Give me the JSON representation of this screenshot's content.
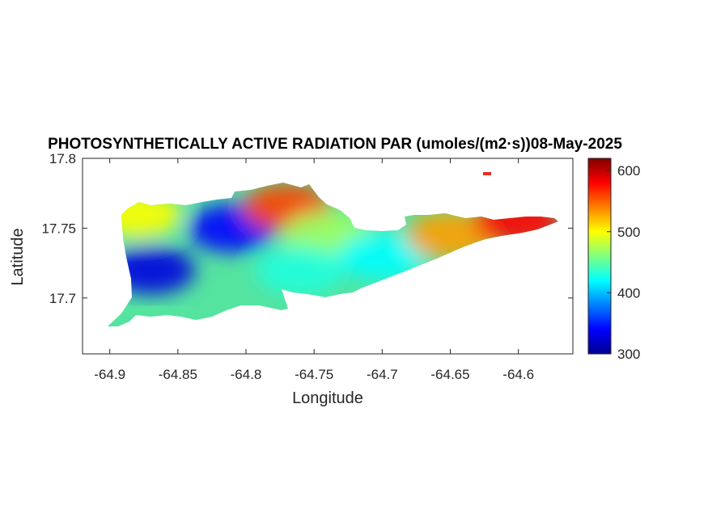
{
  "chart_data": {
    "type": "heatmap",
    "title": "PHOTOSYNTHETICALLY ACTIVE RADIATION PAR (umoles/(m2·s))08-May-2025",
    "xlabel": "Longitude",
    "ylabel": "Latitude",
    "xlim": [
      -64.92,
      -64.56
    ],
    "ylim": [
      17.66,
      17.8
    ],
    "xticks": [
      -64.9,
      -64.85,
      -64.8,
      -64.75,
      -64.7,
      -64.65,
      -64.6
    ],
    "xtick_labels": [
      "-64.9",
      "-64.85",
      "-64.8",
      "-64.75",
      "-64.7",
      "-64.65",
      "-64.6"
    ],
    "yticks": [
      17.7,
      17.75,
      17.8
    ],
    "ytick_labels": [
      "17.7",
      "17.75",
      "17.8"
    ],
    "colorbar": {
      "colormap": "jet",
      "range": [
        300,
        620
      ],
      "ticks": [
        300,
        400,
        500,
        600
      ],
      "tick_labels": [
        "300",
        "400",
        "500",
        "600"
      ]
    },
    "grid": false,
    "values": [
      {
        "lon": -64.87,
        "lat": 17.72,
        "par": 330
      },
      {
        "lon": -64.81,
        "lat": 17.75,
        "par": 340
      },
      {
        "lon": -64.88,
        "lat": 17.76,
        "par": 500
      },
      {
        "lon": -64.77,
        "lat": 17.765,
        "par": 560
      },
      {
        "lon": -64.74,
        "lat": 17.745,
        "par": 470
      },
      {
        "lon": -64.76,
        "lat": 17.72,
        "par": 430
      },
      {
        "lon": -64.7,
        "lat": 17.73,
        "par": 420
      },
      {
        "lon": -64.65,
        "lat": 17.745,
        "par": 530
      },
      {
        "lon": -64.6,
        "lat": 17.755,
        "par": 580
      }
    ]
  }
}
